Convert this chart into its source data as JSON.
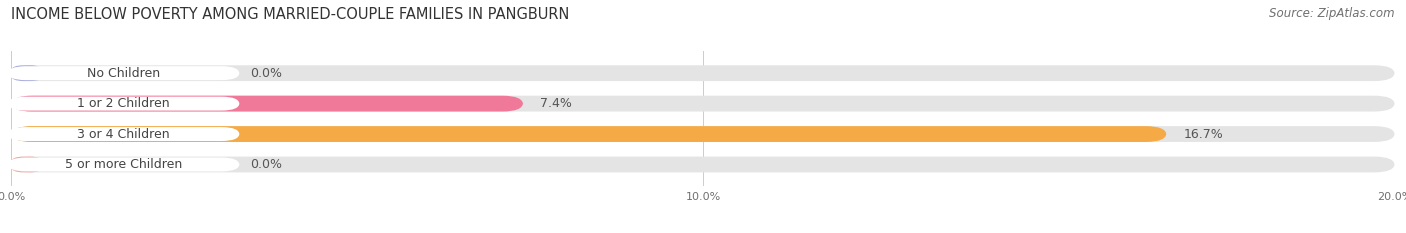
{
  "title": "INCOME BELOW POVERTY AMONG MARRIED-COUPLE FAMILIES IN PANGBURN",
  "source": "Source: ZipAtlas.com",
  "categories": [
    "No Children",
    "1 or 2 Children",
    "3 or 4 Children",
    "5 or more Children"
  ],
  "values": [
    0.0,
    7.4,
    16.7,
    0.0
  ],
  "bar_colors": [
    "#a8aedd",
    "#f07899",
    "#f5aa45",
    "#f0a8a0"
  ],
  "bar_bg_color": "#e4e4e4",
  "label_bg_color": "#ffffff",
  "xlim": [
    0,
    20.0
  ],
  "xticks": [
    0.0,
    10.0,
    20.0
  ],
  "xtick_labels": [
    "0.0%",
    "10.0%",
    "20.0%"
  ],
  "title_fontsize": 10.5,
  "source_fontsize": 8.5,
  "label_fontsize": 9,
  "value_fontsize": 9,
  "bar_height": 0.52,
  "background_color": "#ffffff"
}
